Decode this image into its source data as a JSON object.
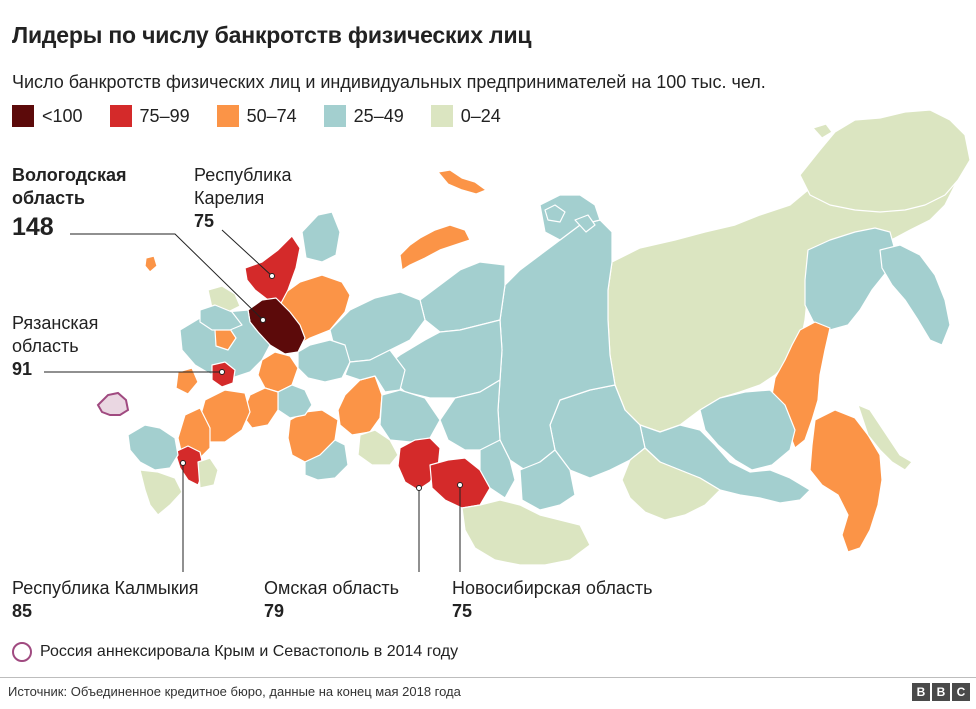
{
  "title": "Лидеры по числу банкротств физических лиц",
  "subtitle": "Число банкротств физических лиц и индивидуальных предпринимателей на 100 тыс. чел.",
  "legend": [
    {
      "label": "<100",
      "color": "#5c0a0a"
    },
    {
      "label": "75–99",
      "color": "#d42a2a"
    },
    {
      "label": "50–74",
      "color": "#fb9447"
    },
    {
      "label": "25–49",
      "color": "#a3cfcf"
    },
    {
      "label": "0–24",
      "color": "#dbe5c1"
    }
  ],
  "callouts": {
    "vologda": {
      "name_line1": "Вологодская",
      "name_line2": "область",
      "value": "148"
    },
    "karelia": {
      "name_line1": "Республика",
      "name_line2": "Карелия",
      "value": "75"
    },
    "ryazan": {
      "name_line1": "Рязанская",
      "name_line2": "область",
      "value": "91"
    },
    "kalmykia": {
      "name": "Республика Калмыкия",
      "value": "85"
    },
    "omsk": {
      "name": "Омская область",
      "value": "79"
    },
    "novosibirsk": {
      "name": "Новосибирская область",
      "value": "75"
    }
  },
  "note": "Россия аннексировала Крым и Севастополь в 2014 году",
  "source": "Источник: Объединенное кредитное бюро, данные на конец мая 2018 года",
  "logo": [
    "B",
    "B",
    "C"
  ],
  "colors": {
    "lt100": "#5c0a0a",
    "c75_99": "#d42a2a",
    "c50_74": "#fb9447",
    "c25_49": "#a3cfcf",
    "c0_24": "#dbe5c1",
    "border": "#ffffff",
    "crimea": "#a04a80"
  }
}
